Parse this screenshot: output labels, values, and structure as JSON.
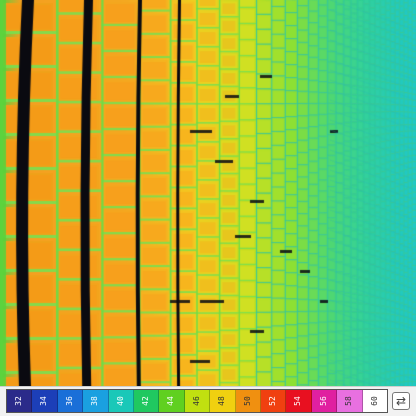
{
  "image": {
    "subject": "thermal-imaging-photo",
    "palette": {
      "hot": "#f4a020",
      "warm": "#f8d020",
      "mid": "#a8e020",
      "cool": "#30d080",
      "cold": "#20c8c8",
      "gap": "#0a0a10",
      "mortar": "#78e050"
    }
  },
  "scale": {
    "colors": [
      "#2b2b8a",
      "#1c3fb8",
      "#1a6fd8",
      "#1aa0e0",
      "#1ac8b8",
      "#20c860",
      "#60d020",
      "#c0e010",
      "#f0d010",
      "#f09010",
      "#f04010",
      "#e81020",
      "#e020a0",
      "#e870e0",
      "#ffffff"
    ],
    "labels": [
      "32",
      "34",
      "36",
      "38",
      "40",
      "42",
      "44",
      "46",
      "48",
      "50",
      "52",
      "54",
      "56",
      "58",
      "60"
    ],
    "icon": "palette-icon",
    "icon_glyph": "⇄"
  }
}
